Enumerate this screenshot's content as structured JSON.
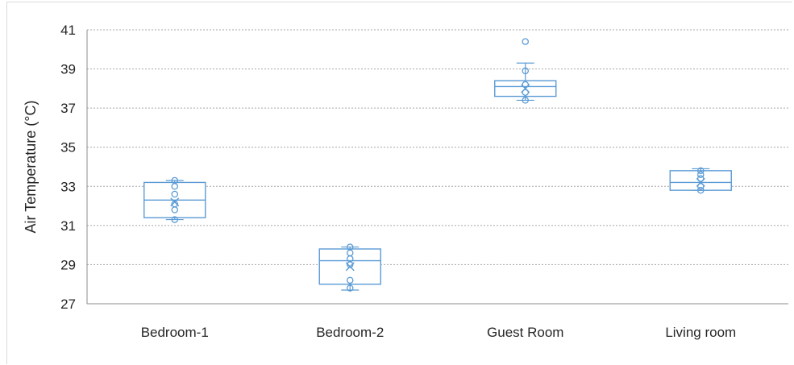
{
  "chart_data": {
    "type": "box",
    "title": "",
    "xlabel": "",
    "ylabel": "Air Temperature (°C)",
    "ylim": [
      27,
      41
    ],
    "yticks": [
      27,
      29,
      31,
      33,
      35,
      37,
      39,
      41
    ],
    "grid": "horizontal-dashed",
    "color": "#5b9bd5",
    "categories": [
      "Bedroom-1",
      "Bedroom-2",
      "Guest Room",
      "Living room"
    ],
    "boxes": [
      {
        "category": "Bedroom-1",
        "min": 31.3,
        "q1": 31.4,
        "median": 32.3,
        "q3": 33.2,
        "max": 33.3,
        "mean": 32.2,
        "points": [
          31.3,
          31.8,
          32.1,
          32.6,
          33.0,
          33.3
        ]
      },
      {
        "category": "Bedroom-2",
        "min": 27.7,
        "q1": 28.0,
        "median": 29.2,
        "q3": 29.8,
        "max": 29.9,
        "mean": 28.9,
        "points": [
          27.8,
          28.2,
          29.0,
          29.3,
          29.6,
          29.9
        ]
      },
      {
        "category": "Guest Room",
        "min": 37.4,
        "q1": 37.6,
        "median": 38.1,
        "q3": 38.4,
        "max": 39.3,
        "mean": 38.0,
        "points": [
          37.4,
          37.8,
          38.2,
          38.9,
          40.4
        ]
      },
      {
        "category": "Living room",
        "min": 32.8,
        "q1": 32.8,
        "median": 33.2,
        "q3": 33.8,
        "max": 33.9,
        "mean": 33.2,
        "points": [
          32.8,
          33.0,
          33.4,
          33.6,
          33.8
        ]
      }
    ]
  }
}
